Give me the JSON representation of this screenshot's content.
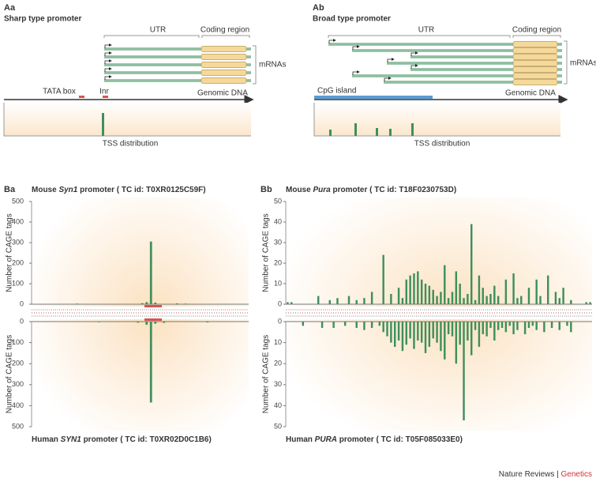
{
  "panels": {
    "Aa": {
      "label": "Aa",
      "title": "Sharp type promoter",
      "utr": "UTR",
      "coding": "Coding region",
      "mrnas": "mRNAs",
      "tata": "TATA box",
      "inr": "Inr",
      "genomic": "Genomic DNA",
      "tss": "TSS distribution"
    },
    "Ab": {
      "label": "Ab",
      "title": "Broad type promoter",
      "utr": "UTR",
      "coding": "Coding region",
      "mrnas": "mRNAs",
      "cpg": "CpG island",
      "genomic": "Genomic DNA",
      "tss": "TSS distribution"
    }
  },
  "chart_data": [
    {
      "type": "mirrored_bar",
      "panel_label": "Ba",
      "color": "#3e8f5c",
      "top": {
        "title": [
          "Mouse ",
          "Syn1",
          " promoter ( TC id: T0XR0125C59F)"
        ],
        "ylabel": "Number of CAGE tags",
        "ylim": [
          0,
          500
        ],
        "yticks": [
          0,
          100,
          200,
          300,
          400,
          500
        ],
        "values": [
          0,
          0,
          0,
          0,
          0,
          0,
          2,
          0,
          0,
          0,
          3,
          0,
          0,
          0,
          0,
          0,
          0,
          0,
          0,
          0,
          0,
          0,
          0,
          0,
          0,
          5,
          10,
          305,
          8,
          0,
          0,
          0,
          0,
          4,
          0,
          3,
          0,
          0,
          0,
          0,
          0,
          0,
          0,
          0,
          2,
          0,
          0,
          0,
          0,
          0
        ]
      },
      "bottom": {
        "title": [
          "Human ",
          "SYN1",
          " promoter ( TC id: T0XR02D0C1B6)"
        ],
        "ylabel": "Number of CAGE tags",
        "ylim": [
          0,
          500
        ],
        "yticks": [
          0,
          100,
          200,
          300,
          400,
          500
        ],
        "values": [
          0,
          0,
          0,
          0,
          0,
          0,
          0,
          0,
          0,
          0,
          0,
          0,
          0,
          0,
          0,
          3,
          0,
          0,
          0,
          0,
          0,
          0,
          0,
          0,
          5,
          0,
          15,
          385,
          10,
          0,
          6,
          0,
          0,
          0,
          0,
          0,
          0,
          0,
          0,
          0,
          4,
          0,
          0,
          0,
          0,
          0,
          0,
          0,
          0,
          0
        ]
      }
    },
    {
      "type": "mirrored_bar",
      "panel_label": "Bb",
      "color": "#3e8f5c",
      "top": {
        "title": [
          "Mouse ",
          "Pura",
          " promoter ( TC id: T18F0230753D)"
        ],
        "ylabel": "Number of CAGE tags",
        "ylim": [
          0,
          50
        ],
        "yticks": [
          0,
          10,
          20,
          30,
          40,
          50
        ],
        "values": [
          1,
          1,
          0,
          0,
          0,
          0,
          0,
          0,
          4,
          0,
          0,
          2,
          0,
          3,
          0,
          0,
          4,
          0,
          2,
          0,
          3,
          0,
          6,
          0,
          0,
          24,
          0,
          5,
          0,
          8,
          3,
          12,
          14,
          15,
          16,
          12,
          10,
          9,
          7,
          4,
          6,
          19,
          3,
          6,
          16,
          10,
          3,
          5,
          39,
          2,
          14,
          8,
          4,
          5,
          9,
          4,
          0,
          12,
          0,
          15,
          3,
          4,
          0,
          8,
          0,
          12,
          4,
          0,
          14,
          0,
          6,
          3,
          8,
          0,
          2,
          0,
          0,
          0,
          1,
          1
        ]
      },
      "bottom": {
        "title": [
          "Human ",
          "PURA",
          " promoter ( TC id: T05F085033E0)"
        ],
        "ylabel": "Number of CAGE tags",
        "ylim": [
          0,
          50
        ],
        "yticks": [
          0,
          10,
          20,
          30,
          40,
          50
        ],
        "values": [
          0,
          0,
          0,
          0,
          2,
          0,
          0,
          0,
          0,
          3,
          0,
          0,
          3,
          0,
          0,
          2,
          0,
          0,
          3,
          0,
          4,
          0,
          3,
          0,
          2,
          5,
          7,
          10,
          12,
          9,
          14,
          11,
          8,
          13,
          9,
          10,
          15,
          12,
          8,
          10,
          14,
          18,
          6,
          7,
          20,
          11,
          47,
          9,
          16,
          4,
          12,
          6,
          7,
          3,
          9,
          4,
          3,
          5,
          2,
          6,
          4,
          0,
          6,
          3,
          2,
          4,
          0,
          5,
          0,
          3,
          0,
          4,
          0,
          2,
          5,
          0,
          0,
          0,
          0,
          0
        ]
      }
    }
  ],
  "footer": {
    "journal": "Nature Reviews",
    "separator": " | ",
    "section": "Genetics"
  }
}
